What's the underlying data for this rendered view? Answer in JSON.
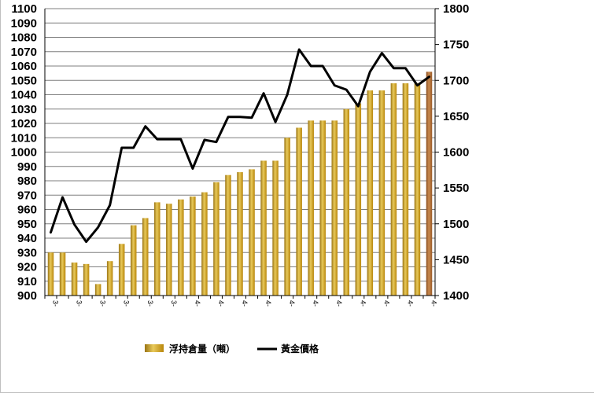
{
  "chart_data": {
    "type": "bar",
    "categories": [
      "3-",
      "3-",
      "3-",
      "3-",
      "3-",
      "3-",
      "3-",
      "3-",
      "3-",
      "3-",
      "3-",
      "3-",
      "3-",
      "3-",
      "3-",
      "3-",
      "4-",
      "4-",
      "4-",
      "4-",
      "4-",
      "4-",
      "4-",
      "4-",
      "4-",
      "4-",
      "4-",
      "4-",
      "4-",
      "4-",
      "4-",
      "4-",
      "4-"
    ],
    "x_tick_labels": [
      "3-",
      "3-",
      "3-",
      "3-",
      "3-",
      "3-",
      "4-",
      "4-",
      "4-",
      "4-",
      "4-",
      "4-",
      "4-",
      "4-",
      "4-",
      "4-",
      "4-"
    ],
    "series": [
      {
        "name": "浮持倉量（噸）",
        "type": "bar",
        "axis": "left",
        "color": "#c9a227",
        "last_color": "#a9632d",
        "values": [
          930,
          930,
          923,
          922,
          908,
          924,
          936,
          949,
          954,
          965,
          964,
          967,
          969,
          972,
          979,
          984,
          986,
          988,
          994,
          994,
          1010,
          1017,
          1022,
          1022,
          1022,
          1030,
          1034,
          1043,
          1043,
          1048,
          1048,
          1048,
          1056
        ]
      },
      {
        "name": "黃金價格",
        "type": "line",
        "axis": "right",
        "color": "#000000",
        "values": [
          1488,
          1537,
          1499,
          1475,
          1495,
          1526,
          1606,
          1606,
          1636,
          1618,
          1618,
          1618,
          1577,
          1617,
          1614,
          1649,
          1649,
          1648,
          1682,
          1642,
          1680,
          1743,
          1720,
          1720,
          1693,
          1687,
          1664,
          1712,
          1738,
          1717,
          1717,
          1693,
          1705
        ]
      }
    ],
    "y_left": {
      "min": 900,
      "max": 1100,
      "step": 10
    },
    "y_right": {
      "min": 1400,
      "max": 1800,
      "step": 50
    },
    "grid": true,
    "legend_position": "bottom",
    "colors": {
      "grid": "#7f7f7f",
      "axis": "#000000",
      "bar_light": "#e8c95a",
      "bar_dark": "#b8860b"
    }
  }
}
